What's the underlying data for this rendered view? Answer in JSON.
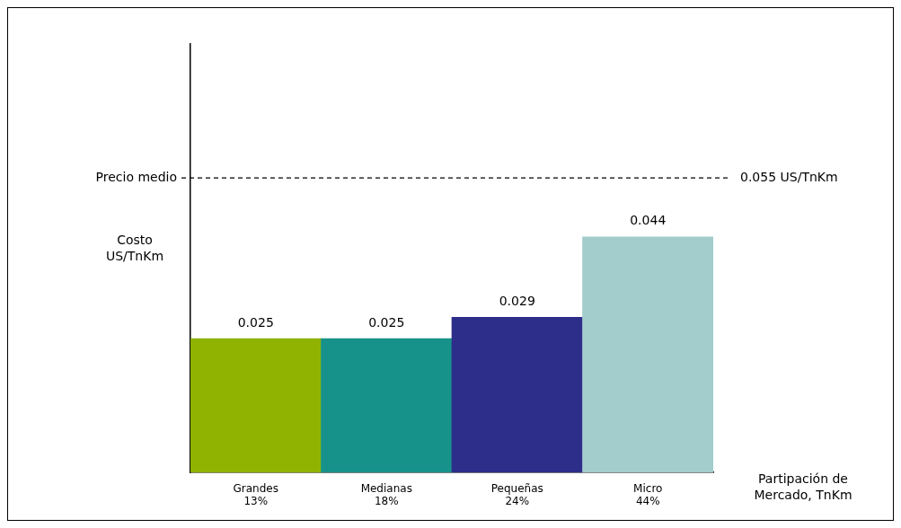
{
  "chart_data": {
    "type": "bar",
    "categories": [
      "Grandes\n13%",
      "Medianas\n18%",
      "Pequeñas\n24%",
      "Micro\n44%"
    ],
    "values": [
      0.025,
      0.025,
      0.029,
      0.044
    ],
    "colors": [
      "#8fb300",
      "#17928a",
      "#2d2d8a",
      "#a3cccc"
    ],
    "data_labels": true,
    "ylabel": "Costo\nUS/TnKm",
    "xlabel": "Partipación de\nMercado, TnKm",
    "ref_lines": [
      {
        "axis": "y",
        "value": 0.055,
        "label": "Precio medio",
        "line_style": "dashed",
        "color": "#000000"
      }
    ],
    "annotations": [
      "0.055 US/TnKm"
    ]
  }
}
